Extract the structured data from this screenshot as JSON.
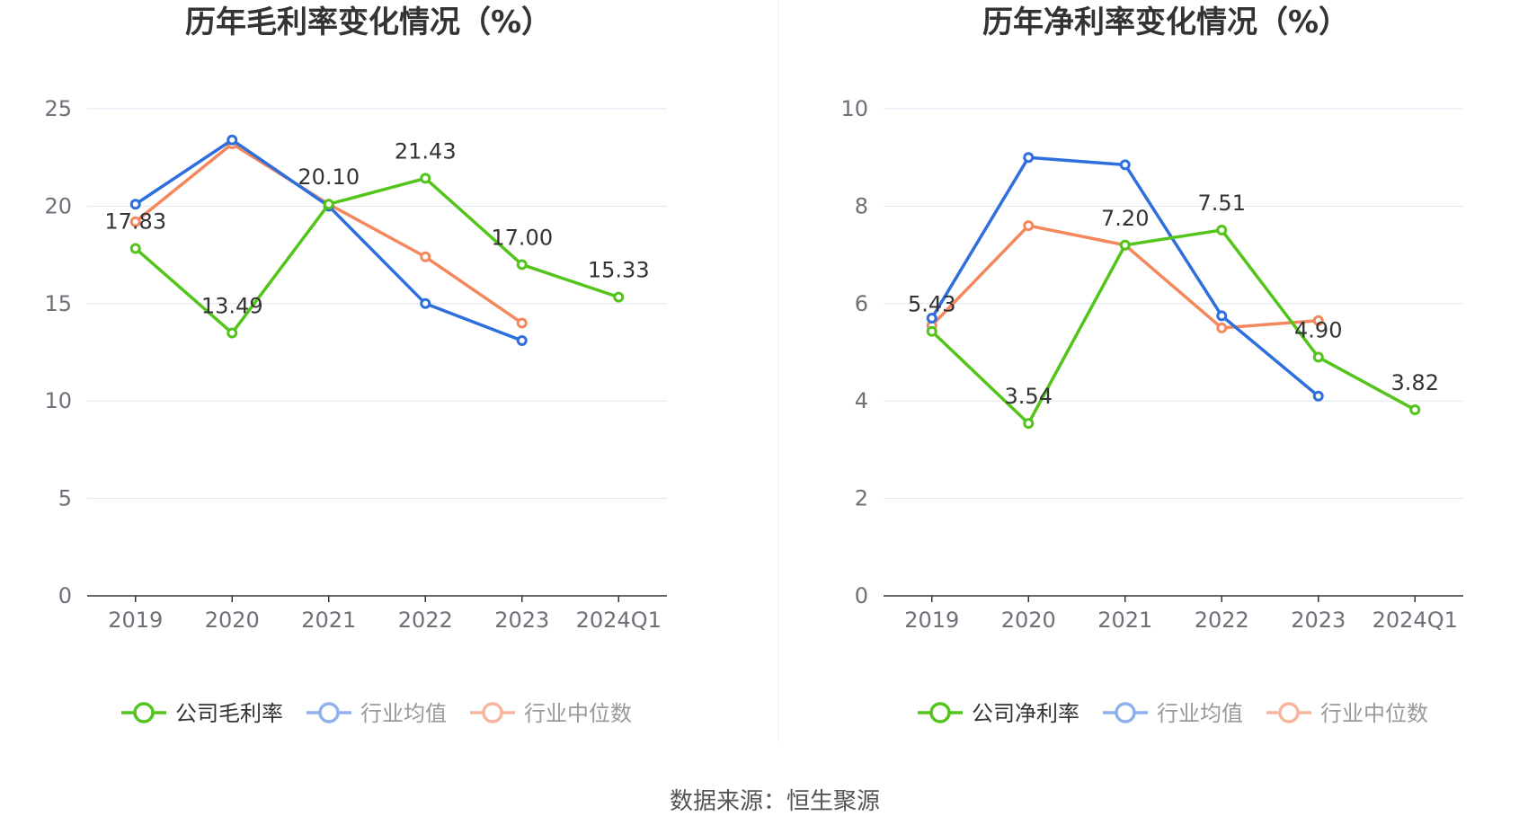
{
  "source_label": "数据来源：恒生聚源",
  "legend": {
    "avg": "行业均值",
    "median": "行业中位数"
  },
  "colors": {
    "company": "#52c41a",
    "avg": "#2f6fdd",
    "median": "#f4875c",
    "legend_avg": "#8fb0ec",
    "legend_median": "#f7b59d",
    "grid": "#dfe6f2",
    "axis": "#333333"
  },
  "chart_data": [
    {
      "type": "line",
      "title": "历年毛利率变化情况（%）",
      "categories": [
        "2019",
        "2020",
        "2021",
        "2022",
        "2023",
        "2024Q1"
      ],
      "ylim": [
        0,
        25
      ],
      "yticks": [
        0,
        5,
        10,
        15,
        20,
        25
      ],
      "grid": true,
      "legend_position": "bottom",
      "series": [
        {
          "key": "company",
          "name": "公司毛利率",
          "values": [
            17.83,
            13.49,
            20.1,
            21.43,
            17.0,
            15.33
          ],
          "labels": [
            "17.83",
            "13.49",
            "20.10",
            "21.43",
            "17.00",
            "15.33"
          ]
        },
        {
          "key": "avg",
          "name": "行业均值",
          "values": [
            20.1,
            23.4,
            20.0,
            15.0,
            13.1,
            null
          ]
        },
        {
          "key": "median",
          "name": "行业中位数",
          "values": [
            19.2,
            23.2,
            20.1,
            17.4,
            14.0,
            null
          ]
        }
      ]
    },
    {
      "type": "line",
      "title": "历年净利率变化情况（%）",
      "categories": [
        "2019",
        "2020",
        "2021",
        "2022",
        "2023",
        "2024Q1"
      ],
      "ylim": [
        0,
        10
      ],
      "yticks": [
        0,
        2,
        4,
        6,
        8,
        10
      ],
      "grid": true,
      "legend_position": "bottom",
      "series": [
        {
          "key": "company",
          "name": "公司净利率",
          "values": [
            5.43,
            3.54,
            7.2,
            7.51,
            4.9,
            3.82
          ],
          "labels": [
            "5.43",
            "3.54",
            "7.20",
            "7.51",
            "4.90",
            "3.82"
          ]
        },
        {
          "key": "avg",
          "name": "行业均值",
          "values": [
            5.7,
            9.0,
            8.85,
            5.75,
            4.1,
            null
          ]
        },
        {
          "key": "median",
          "name": "行业中位数",
          "values": [
            5.55,
            7.6,
            7.2,
            5.5,
            5.65,
            null
          ]
        }
      ]
    }
  ]
}
